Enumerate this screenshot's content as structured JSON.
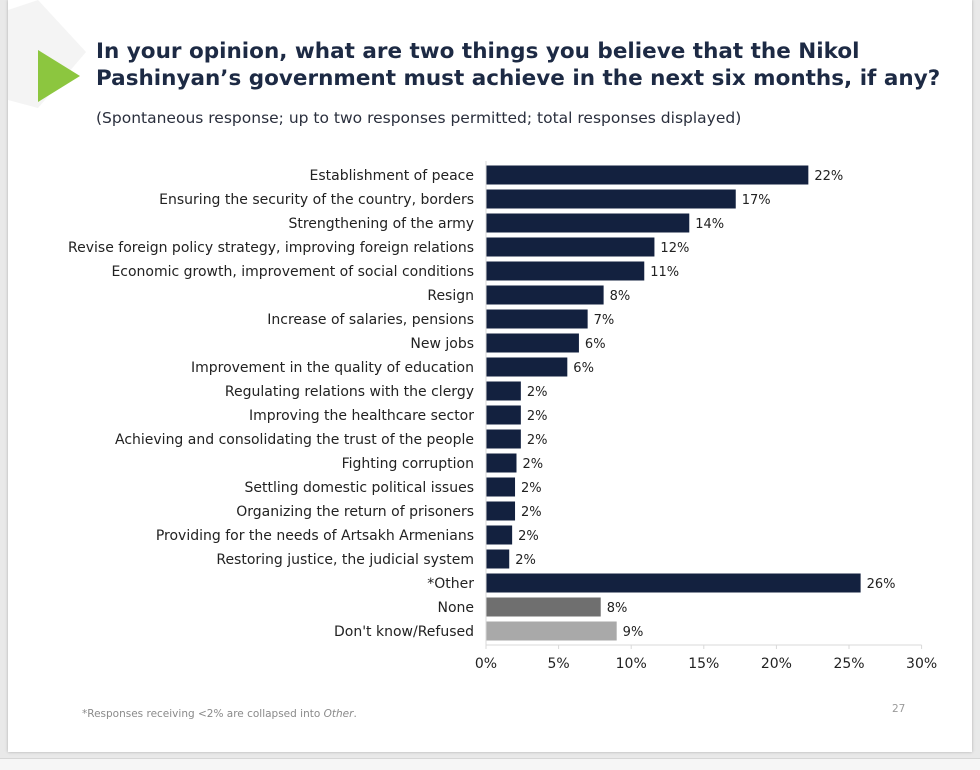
{
  "header": {
    "title": "In your opinion, what are two things you believe that the Nikol\nPashinyan’s government must achieve in the next six months, if any?",
    "subtitle": "(Spontaneous response; up to two responses permitted; total responses displayed)"
  },
  "footer": {
    "footnote_prefix": "*Responses receiving <2% are collapsed into ",
    "footnote_emph": "Other",
    "footnote_suffix": ".",
    "page_number": "27"
  },
  "colors": {
    "bar_main": "#13213f",
    "bar_none": "#6f6f6f",
    "bar_dontknow": "#a9a9a9",
    "title": "#1d2a44",
    "accent_triangle": "#8cc63f",
    "grid": "#d9d9d9"
  },
  "chart_data": {
    "type": "bar",
    "orientation": "horizontal",
    "title": "In your opinion, what are two things you believe that the Nikol Pashinyan’s government must achieve in the next six months, if any?",
    "categories": [
      "Establishment of peace",
      "Ensuring the security of the country, borders",
      "Strengthening of the army",
      "Revise foreign policy strategy, improving foreign relations",
      "Economic growth, improvement of social conditions",
      "Resign",
      "Increase of salaries, pensions",
      "New jobs",
      "Improvement in the quality of education",
      "Regulating relations with the clergy",
      "Improving the healthcare sector",
      "Achieving and consolidating the trust of the people",
      "Fighting corruption",
      "Settling domestic political issues",
      "Organizing the return of prisoners",
      "Providing for the needs of Artsakh Armenians",
      "Restoring justice, the judicial system",
      "*Other",
      "None",
      "Don't know/Refused"
    ],
    "values": [
      22.2,
      17.2,
      14.0,
      11.6,
      10.9,
      8.1,
      7.0,
      6.4,
      5.6,
      2.4,
      2.4,
      2.4,
      2.1,
      2.0,
      2.0,
      1.8,
      1.6,
      25.8,
      7.9,
      9.0
    ],
    "value_labels": [
      "22%",
      "17%",
      "14%",
      "12%",
      "11%",
      "8%",
      "7%",
      "6%",
      "6%",
      "2%",
      "2%",
      "2%",
      "2%",
      "2%",
      "2%",
      "2%",
      "2%",
      "26%",
      "8%",
      "9%"
    ],
    "bar_colors": [
      "#13213f",
      "#13213f",
      "#13213f",
      "#13213f",
      "#13213f",
      "#13213f",
      "#13213f",
      "#13213f",
      "#13213f",
      "#13213f",
      "#13213f",
      "#13213f",
      "#13213f",
      "#13213f",
      "#13213f",
      "#13213f",
      "#13213f",
      "#13213f",
      "#6f6f6f",
      "#a9a9a9"
    ],
    "xlim": [
      0,
      30
    ],
    "xticks": [
      0,
      5,
      10,
      15,
      20,
      25,
      30
    ],
    "xtick_labels": [
      "0%",
      "5%",
      "10%",
      "15%",
      "20%",
      "25%",
      "30%"
    ],
    "grid": false,
    "legend": "none"
  }
}
